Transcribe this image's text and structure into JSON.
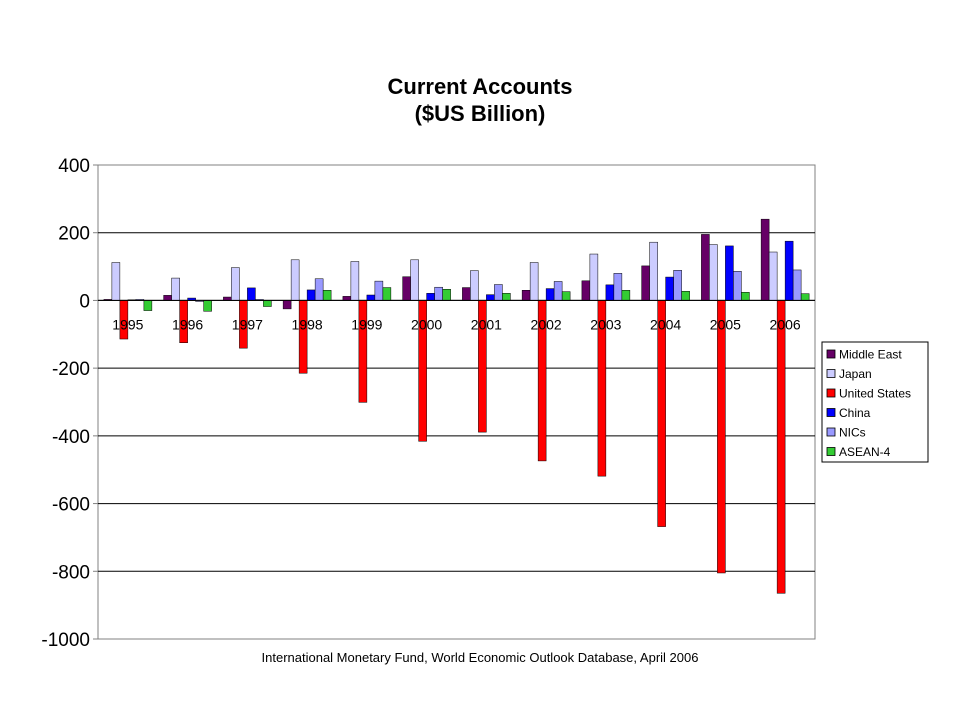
{
  "chart_data": {
    "type": "bar",
    "title": "Current Accounts",
    "subtitle": "($US Billion)",
    "xlabel": "",
    "ylabel": "",
    "ylim": [
      -1000,
      400
    ],
    "yticks": [
      400,
      200,
      0,
      -200,
      -400,
      -600,
      -800,
      -1000
    ],
    "grid": true,
    "legend_position": "right",
    "categories": [
      "1995",
      "1996",
      "1997",
      "1998",
      "1999",
      "2000",
      "2001",
      "2002",
      "2003",
      "2004",
      "2005",
      "2006"
    ],
    "series": [
      {
        "name": "Middle East",
        "color": "#660066",
        "values": [
          3,
          15,
          10,
          -25,
          12,
          70,
          38,
          30,
          58,
          102,
          195,
          240
        ]
      },
      {
        "name": "Japan",
        "color": "#ccccff",
        "values": [
          112,
          66,
          97,
          120,
          115,
          120,
          88,
          112,
          137,
          172,
          165,
          143
        ]
      },
      {
        "name": "United States",
        "color": "#ff0000",
        "values": [
          -114,
          -125,
          -141,
          -215,
          -301,
          -416,
          -389,
          -474,
          -519,
          -668,
          -805,
          -865
        ]
      },
      {
        "name": "China",
        "color": "#0000ff",
        "values": [
          2,
          7,
          37,
          31,
          16,
          21,
          17,
          35,
          46,
          69,
          161,
          175
        ]
      },
      {
        "name": "NICs",
        "color": "#9999ff",
        "values": [
          3,
          -3,
          3,
          64,
          57,
          39,
          47,
          56,
          80,
          89,
          86,
          90
        ]
      },
      {
        "name": "ASEAN-4",
        "color": "#33cc33",
        "values": [
          -30,
          -32,
          -18,
          30,
          38,
          33,
          21,
          26,
          30,
          27,
          24,
          20
        ]
      }
    ],
    "source_note": "International Monetary Fund, World Economic Outlook Database, April 2006"
  }
}
